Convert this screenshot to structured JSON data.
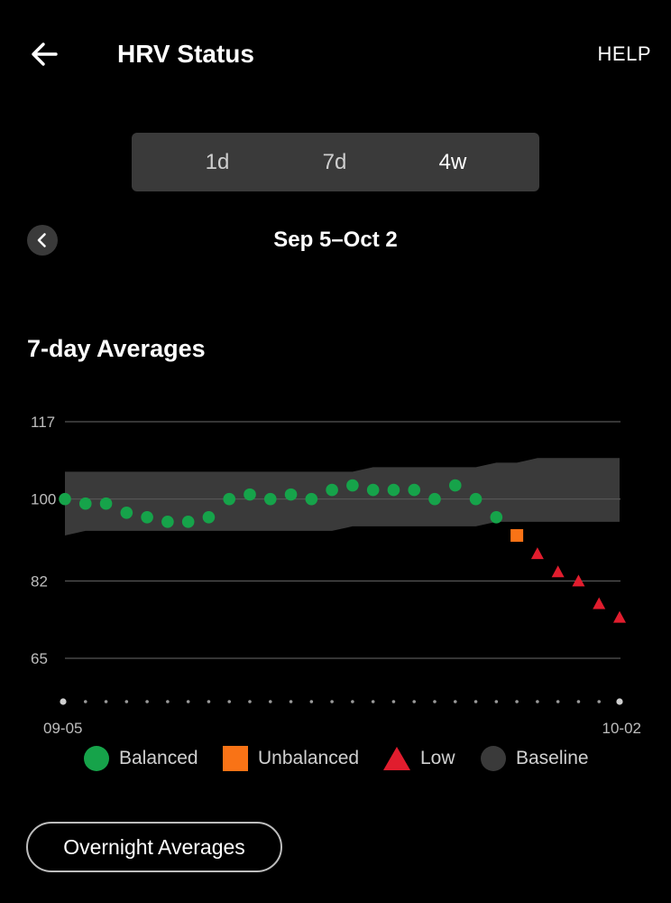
{
  "header": {
    "title": "HRV Status",
    "help_label": "HELP",
    "back_icon": "arrow-left-icon"
  },
  "period_tabs": [
    {
      "label": "1d",
      "active": false
    },
    {
      "label": "7d",
      "active": false
    },
    {
      "label": "4w",
      "active": true
    }
  ],
  "date_nav": {
    "prev_icon": "chevron-left-icon",
    "range_label": "Sep 5–Oct 2"
  },
  "section_title": "7-day Averages",
  "colors": {
    "balanced": "#16a34a",
    "unbalanced": "#f97316",
    "low": "#e11d2e",
    "baseline": "#3a3a3a",
    "gridline": "#555555",
    "background": "#000000"
  },
  "chart_data": {
    "type": "scatter",
    "x_start_label": "09-05",
    "x_end_label": "10-02",
    "y_ticks": [
      117,
      100,
      82,
      65
    ],
    "ylim": [
      56,
      117
    ],
    "grid": true,
    "series": [
      {
        "name": "Balanced",
        "marker": "circle",
        "points": [
          {
            "day": 0,
            "y": 100
          },
          {
            "day": 1,
            "y": 99
          },
          {
            "day": 2,
            "y": 99
          },
          {
            "day": 3,
            "y": 97
          },
          {
            "day": 4,
            "y": 96
          },
          {
            "day": 5,
            "y": 95
          },
          {
            "day": 6,
            "y": 95
          },
          {
            "day": 7,
            "y": 96
          },
          {
            "day": 8,
            "y": 100
          },
          {
            "day": 9,
            "y": 101
          },
          {
            "day": 10,
            "y": 100
          },
          {
            "day": 11,
            "y": 101
          },
          {
            "day": 12,
            "y": 100
          },
          {
            "day": 13,
            "y": 102
          },
          {
            "day": 14,
            "y": 103
          },
          {
            "day": 15,
            "y": 102
          },
          {
            "day": 16,
            "y": 102
          },
          {
            "day": 17,
            "y": 102
          },
          {
            "day": 18,
            "y": 100
          },
          {
            "day": 19,
            "y": 103
          },
          {
            "day": 20,
            "y": 100
          },
          {
            "day": 21,
            "y": 96
          }
        ]
      },
      {
        "name": "Unbalanced",
        "marker": "square",
        "points": [
          {
            "day": 22,
            "y": 92
          }
        ]
      },
      {
        "name": "Low",
        "marker": "triangle",
        "points": [
          {
            "day": 23,
            "y": 88
          },
          {
            "day": 24,
            "y": 84
          },
          {
            "day": 25,
            "y": 82
          },
          {
            "day": 26,
            "y": 77
          },
          {
            "day": 27,
            "y": 74
          }
        ]
      }
    ],
    "baseline_band": {
      "name": "Baseline",
      "upper": [
        106,
        106,
        106,
        106,
        106,
        106,
        106,
        106,
        106,
        106,
        106,
        106,
        106,
        106,
        106,
        107,
        107,
        107,
        107,
        107,
        107,
        108,
        108,
        109,
        109,
        109,
        109,
        109
      ],
      "lower": [
        92,
        93,
        93,
        93,
        93,
        93,
        93,
        93,
        93,
        93,
        93,
        93,
        93,
        93,
        94,
        94,
        94,
        94,
        94,
        94,
        94,
        95,
        95,
        95,
        95,
        95,
        95,
        95
      ]
    }
  },
  "legend": [
    {
      "label": "Balanced",
      "icon": "circle-icon"
    },
    {
      "label": "Unbalanced",
      "icon": "square-icon"
    },
    {
      "label": "Low",
      "icon": "triangle-icon"
    },
    {
      "label": "Baseline",
      "icon": "circle-icon"
    }
  ],
  "overnight_button": {
    "label": "Overnight Averages"
  }
}
